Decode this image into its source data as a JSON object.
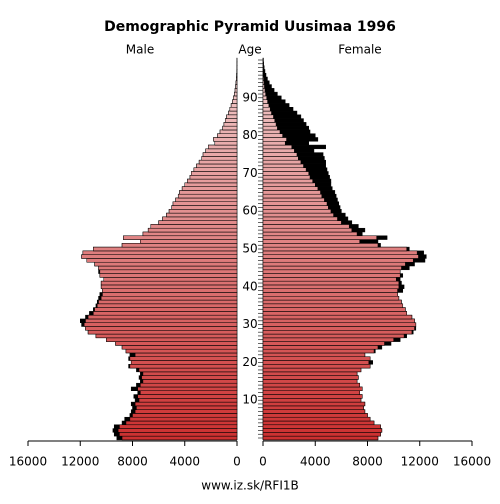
{
  "chart_data": {
    "type": "pyramid",
    "title": "Demographic Pyramid Uusimaa 1996",
    "left_label": "Male",
    "center_label": "Age",
    "right_label": "Female",
    "footer": "www.iz.sk/RFI1B",
    "categories": [
      0,
      1,
      2,
      3,
      4,
      5,
      6,
      7,
      8,
      9,
      10,
      11,
      12,
      13,
      14,
      15,
      16,
      17,
      18,
      19,
      20,
      21,
      22,
      23,
      24,
      25,
      26,
      27,
      28,
      29,
      30,
      31,
      32,
      33,
      34,
      35,
      36,
      37,
      38,
      39,
      40,
      41,
      42,
      43,
      44,
      45,
      46,
      47,
      48,
      49,
      50,
      51,
      52,
      53,
      54,
      55,
      56,
      57,
      58,
      59,
      60,
      61,
      62,
      63,
      64,
      65,
      66,
      67,
      68,
      69,
      70,
      71,
      72,
      73,
      74,
      75,
      76,
      77,
      78,
      79,
      80,
      81,
      82,
      83,
      84,
      85,
      86,
      87,
      88,
      89,
      90,
      91,
      92,
      93,
      94,
      95,
      96,
      97,
      98,
      99,
      100
    ],
    "yticks": [
      10,
      20,
      30,
      40,
      50,
      60,
      70,
      80,
      90
    ],
    "xlim": [
      0,
      16000
    ],
    "xticks": [
      0,
      4000,
      8000,
      12000,
      16000
    ],
    "color_young": "#cc3030",
    "color_old": "#f2d0d0",
    "excess_color": "#000000",
    "series": [
      {
        "name": "Male",
        "values": [
          9200,
          9400,
          9500,
          9400,
          8800,
          8600,
          8200,
          8100,
          8000,
          8100,
          7800,
          7900,
          7600,
          8100,
          7700,
          7400,
          7500,
          7400,
          7700,
          8300,
          8100,
          8300,
          8200,
          8500,
          8800,
          9300,
          10000,
          10800,
          11400,
          11600,
          11900,
          12000,
          11600,
          11300,
          11000,
          10800,
          10700,
          10600,
          10500,
          10300,
          10400,
          10400,
          10200,
          10500,
          10600,
          10600,
          10900,
          11500,
          11900,
          11800,
          11000,
          8800,
          7400,
          8700,
          7200,
          6800,
          6600,
          6000,
          5700,
          5400,
          5200,
          5000,
          4900,
          4700,
          4500,
          4400,
          4200,
          4000,
          3800,
          3600,
          3500,
          3300,
          3100,
          2900,
          2700,
          2600,
          2400,
          2200,
          1700,
          1800,
          1500,
          1300,
          1100,
          1000,
          900,
          800,
          650,
          550,
          450,
          350,
          280,
          200,
          150,
          110,
          80,
          50,
          30,
          20,
          12,
          8,
          5
        ]
      },
      {
        "name": "Female",
        "values": [
          8800,
          9000,
          9100,
          9000,
          8500,
          8200,
          8000,
          7800,
          7700,
          7800,
          7500,
          7600,
          7400,
          7600,
          7400,
          7200,
          7300,
          7200,
          7500,
          8200,
          8400,
          8200,
          7800,
          8600,
          9100,
          9800,
          10500,
          11000,
          11500,
          11700,
          11700,
          11600,
          11400,
          11000,
          10900,
          10700,
          10600,
          10400,
          10300,
          10700,
          10800,
          10600,
          10500,
          10700,
          10500,
          11200,
          11600,
          12400,
          12500,
          12300,
          11200,
          9000,
          8800,
          9500,
          7600,
          7800,
          7300,
          6800,
          6500,
          6300,
          6000,
          5900,
          5800,
          5700,
          5600,
          5500,
          5300,
          5200,
          5200,
          5100,
          5000,
          4900,
          4800,
          4800,
          4700,
          4600,
          3900,
          4800,
          3500,
          4200,
          4000,
          3600,
          3500,
          3300,
          3100,
          2900,
          2600,
          2300,
          2000,
          1700,
          1400,
          1100,
          850,
          650,
          480,
          340,
          230,
          150,
          90,
          55,
          35
        ]
      }
    ]
  }
}
